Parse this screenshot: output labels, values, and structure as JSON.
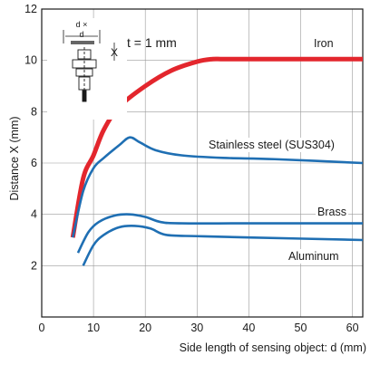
{
  "chart_data": {
    "type": "line",
    "xlabel": "Side length of sensing object: d (mm)",
    "ylabel": "Distance X (mm)",
    "xlim": [
      0,
      62
    ],
    "ylim": [
      0,
      12
    ],
    "xticks": [
      0,
      10,
      20,
      30,
      40,
      50,
      60
    ],
    "yticks": [
      2,
      4,
      6,
      8,
      10,
      12
    ],
    "grid": true,
    "annotation": "t = 1 mm",
    "inset_labels": {
      "d_times": "d ×",
      "d": "d",
      "x": "X"
    },
    "series": [
      {
        "name": "Iron",
        "color": "#e3262d",
        "points": [
          [
            6,
            3.1
          ],
          [
            8,
            5.4
          ],
          [
            10,
            6.3
          ],
          [
            12,
            7.3
          ],
          [
            15,
            8.2
          ],
          [
            20,
            9.0
          ],
          [
            25,
            9.6
          ],
          [
            30,
            9.95
          ],
          [
            33,
            10.05
          ],
          [
            35,
            10.05
          ],
          [
            40,
            10.05
          ],
          [
            50,
            10.05
          ],
          [
            62,
            10.05
          ]
        ]
      },
      {
        "name": "Stainless steel (SUS304)",
        "color": "#1f6fb3",
        "points": [
          [
            6,
            3.1
          ],
          [
            8,
            4.9
          ],
          [
            10,
            5.8
          ],
          [
            12,
            6.2
          ],
          [
            15,
            6.7
          ],
          [
            17,
            7.0
          ],
          [
            19,
            6.8
          ],
          [
            22,
            6.5
          ],
          [
            27,
            6.3
          ],
          [
            35,
            6.2
          ],
          [
            45,
            6.15
          ],
          [
            62,
            6.0
          ]
        ]
      },
      {
        "name": "Brass",
        "color": "#1f6fb3",
        "points": [
          [
            7,
            2.5
          ],
          [
            9,
            3.3
          ],
          [
            11,
            3.7
          ],
          [
            14,
            3.95
          ],
          [
            17,
            4.0
          ],
          [
            20,
            3.9
          ],
          [
            23,
            3.7
          ],
          [
            27,
            3.65
          ],
          [
            40,
            3.65
          ],
          [
            62,
            3.65
          ]
        ]
      },
      {
        "name": "Aluminum",
        "color": "#1f6fb3",
        "points": [
          [
            8,
            2.0
          ],
          [
            10,
            2.8
          ],
          [
            12,
            3.2
          ],
          [
            15,
            3.5
          ],
          [
            18,
            3.55
          ],
          [
            21,
            3.45
          ],
          [
            24,
            3.2
          ],
          [
            30,
            3.15
          ],
          [
            40,
            3.1
          ],
          [
            62,
            3.0
          ]
        ]
      }
    ]
  }
}
